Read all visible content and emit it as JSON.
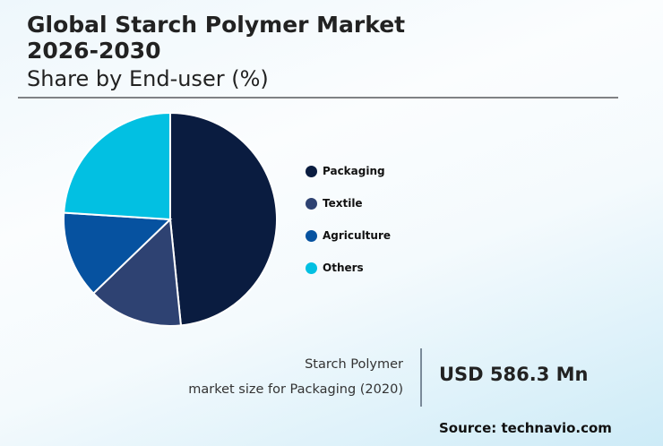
{
  "header": {
    "title_line1": "Global Starch Polymer Market",
    "title_line2": "2026-2030",
    "subtitle": "Share by End-user (%)"
  },
  "stat": {
    "label_line1": "Starch Polymer",
    "label_line2": "market size for Packaging (2020)",
    "value": "USD 586.3 Mn"
  },
  "source": "Source: technavio.com",
  "chart_data": {
    "type": "pie",
    "title": "Global Starch Polymer Market 2026-2030",
    "subtitle": "Share by End-user (%)",
    "categories": [
      "Packaging",
      "Textile",
      "Agriculture",
      "Others"
    ],
    "values": [
      48.4,
      14.4,
      13.2,
      24.0
    ],
    "colors": [
      "#0a1c40",
      "#2e4272",
      "#0652a0",
      "#02c0e2"
    ],
    "start_angle": "12 o'clock, clockwise",
    "legend_position": "right",
    "data_labels": false
  }
}
